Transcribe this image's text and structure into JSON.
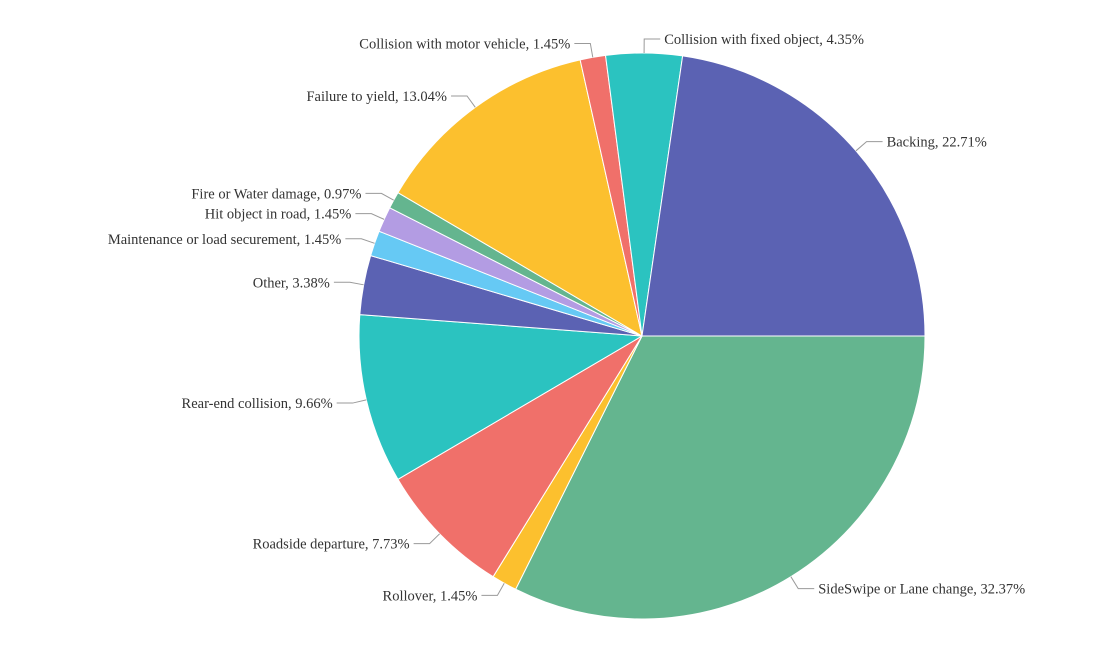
{
  "chart_data": {
    "type": "pie",
    "title": "",
    "start_at": "3 o'clock",
    "direction": "clockwise",
    "label_format": "{name}, {value}%",
    "slices": [
      {
        "name": "SideSwipe or Lane change",
        "value": 32.37,
        "display": "SideSwipe or Lane change, 32.37%",
        "color": "#64b58f"
      },
      {
        "name": "Rollover",
        "value": 1.45,
        "display": "Rollover, 1.45%",
        "color": "#fcc02e"
      },
      {
        "name": "Roadside departure",
        "value": 7.73,
        "display": "Roadside departure, 7.73%",
        "color": "#f0706a"
      },
      {
        "name": "Rear-end collision",
        "value": 9.66,
        "display": "Rear-end collision, 9.66%",
        "color": "#2bc3c0"
      },
      {
        "name": "Other",
        "value": 3.38,
        "display": "Other, 3.38%",
        "color": "#5b62b3"
      },
      {
        "name": "Maintenance or load securement",
        "value": 1.45,
        "display": "Maintenance or load securement, 1.45%",
        "color": "#66c9f4"
      },
      {
        "name": "Hit object in road",
        "value": 1.45,
        "display": "Hit object in road, 1.45%",
        "color": "#b39ce3"
      },
      {
        "name": "Fire or Water damage",
        "value": 0.97,
        "display": "Fire or Water damage, 0.97%",
        "color": "#64b58f"
      },
      {
        "name": "Failure to yield",
        "value": 13.04,
        "display": "Failure to yield, 13.04%",
        "color": "#fcc02e"
      },
      {
        "name": "Collision with motor vehicle",
        "value": 1.45,
        "display": "Collision with motor vehicle, 1.45%",
        "color": "#f0706a"
      },
      {
        "name": "Collision with fixed object",
        "value": 4.35,
        "display": "Collision with fixed object, 4.35%",
        "color": "#2bc3c0"
      },
      {
        "name": "Backing",
        "value": 22.71,
        "display": "Backing, 22.71%",
        "color": "#5b62b3"
      }
    ]
  }
}
